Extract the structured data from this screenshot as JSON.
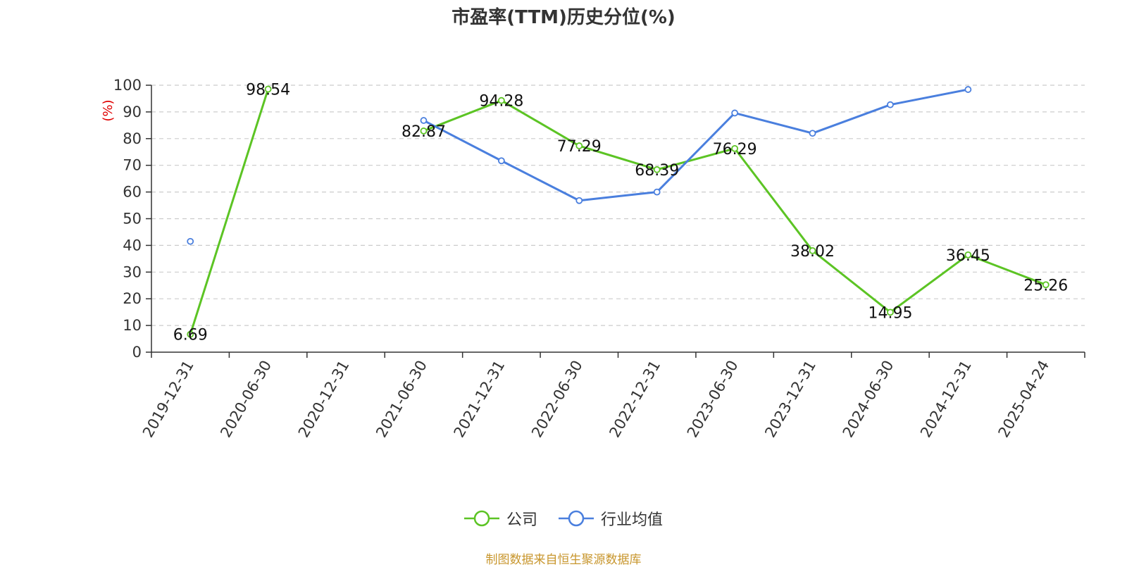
{
  "chart_data": {
    "type": "line",
    "title": "市盈率(TTM)历史分位(%)",
    "ylabel": "(%)",
    "ylim": [
      0,
      100
    ],
    "yticks": [
      0,
      10,
      20,
      30,
      40,
      50,
      60,
      70,
      80,
      90,
      100
    ],
    "x": [
      "2019-12-31",
      "2020-06-30",
      "2020-12-31",
      "2021-06-30",
      "2021-12-31",
      "2022-06-30",
      "2022-12-31",
      "2023-06-30",
      "2023-12-31",
      "2024-06-30",
      "2024-12-31",
      "2025-04-24"
    ],
    "grid": true,
    "legend_position": "bottom",
    "series": [
      {
        "name": "公司",
        "color": "#5cc424",
        "values": [
          6.69,
          98.54,
          null,
          82.87,
          94.28,
          77.29,
          68.39,
          76.29,
          38.02,
          14.95,
          36.45,
          25.26
        ],
        "labels": [
          "6.69",
          "98.54",
          null,
          "82.87",
          "94.28",
          "77.29",
          "68.39",
          "76.29",
          "38.02",
          "14.95",
          "36.45",
          "25.26"
        ]
      },
      {
        "name": "行业均值",
        "color": "#4a7fde",
        "values": [
          41.5,
          null,
          null,
          86.8,
          71.7,
          56.8,
          60.0,
          89.6,
          82.0,
          92.7,
          98.4,
          null
        ]
      }
    ]
  },
  "source_note": "制图数据来自恒生聚源数据库"
}
